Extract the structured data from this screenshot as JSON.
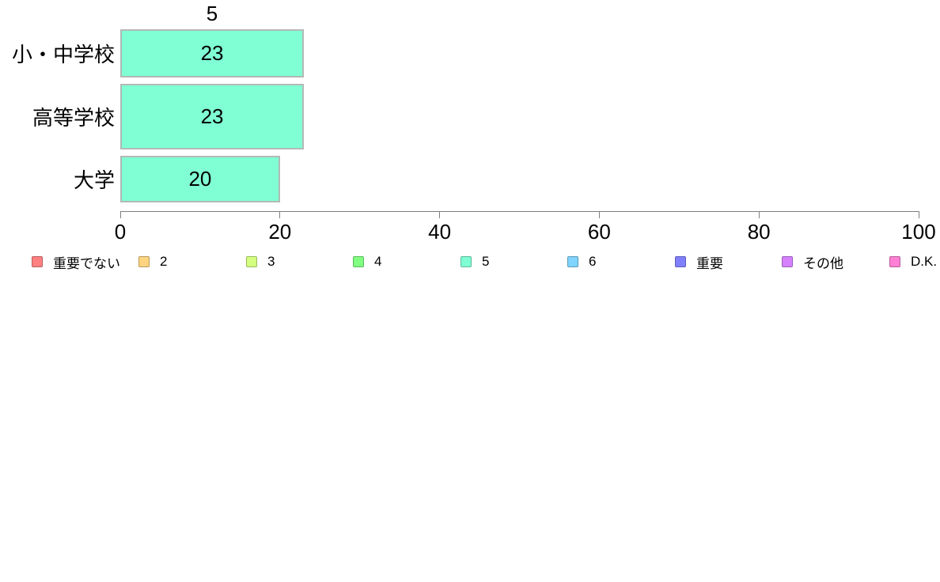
{
  "chart_data": {
    "type": "bar",
    "orientation": "horizontal",
    "title": "5",
    "categories": [
      "小・中学校",
      "高等学校",
      "大学"
    ],
    "values": [
      23,
      23,
      20
    ],
    "xlabel": "",
    "ylabel": "",
    "xlim": [
      0,
      100
    ],
    "xticks": [
      "0",
      "20",
      "40",
      "60",
      "80",
      "100"
    ],
    "grid": false,
    "bar_color": "#80FFD4",
    "bar_border_color": "#b2bab4",
    "value_labels_shown": true,
    "legend_position": "bottom"
  },
  "legend": {
    "items": [
      {
        "label": "重要でない",
        "color": "#FF8080"
      },
      {
        "label": "2",
        "color": "#FFD480"
      },
      {
        "label": "3",
        "color": "#D4FF80"
      },
      {
        "label": "4",
        "color": "#80FF80"
      },
      {
        "label": "5",
        "color": "#80FFD4"
      },
      {
        "label": "6",
        "color": "#80D4FF"
      },
      {
        "label": "重要",
        "color": "#8080FF"
      },
      {
        "label": "その他",
        "color": "#D480FF"
      },
      {
        "label": "D.K.",
        "color": "#FF80D4"
      }
    ]
  }
}
